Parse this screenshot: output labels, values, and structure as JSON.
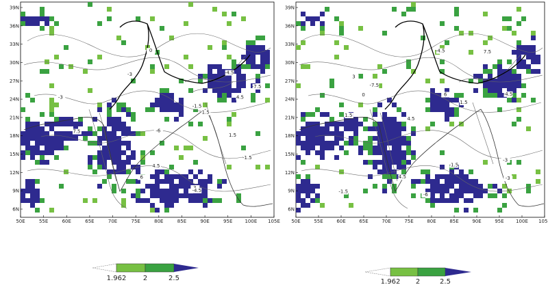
{
  "colors": {
    "light_green": "#77c043",
    "green": "#3aa241",
    "blue": "#2e2a8f"
  },
  "panels": [
    {
      "id": "left",
      "x_ticks": [
        "50E",
        "55E",
        "60E",
        "65E",
        "70E",
        "75E",
        "80E",
        "85E",
        "90E",
        "95E",
        "100E",
        "105E"
      ],
      "y_ticks": [
        "6N",
        "9N",
        "12N",
        "15N",
        "18N",
        "21N",
        "24N",
        "27N",
        "30N",
        "33N",
        "36N",
        "39N"
      ]
    },
    {
      "id": "right",
      "x_ticks": [
        "50E",
        "55E",
        "60E",
        "65E",
        "70E",
        "75E",
        "80E",
        "85E",
        "90E",
        "95E",
        "100E",
        "105E"
      ],
      "y_ticks": [
        "6N",
        "9N",
        "12N",
        "15N",
        "18N",
        "21N",
        "24N",
        "27N",
        "30N",
        "33N",
        "36N",
        "39N"
      ]
    }
  ],
  "contour_labels": [
    "-1.5",
    "1.5",
    "-4.5",
    "4.5",
    "-3",
    "3",
    "-7.5",
    "7.5",
    "-6",
    "6",
    "0"
  ],
  "legends": [
    {
      "id": "left-legend",
      "labels": [
        "1.962",
        "2",
        "2.5"
      ]
    },
    {
      "id": "right-legend",
      "labels": [
        "1.962",
        "2",
        "2.5"
      ]
    }
  ]
}
